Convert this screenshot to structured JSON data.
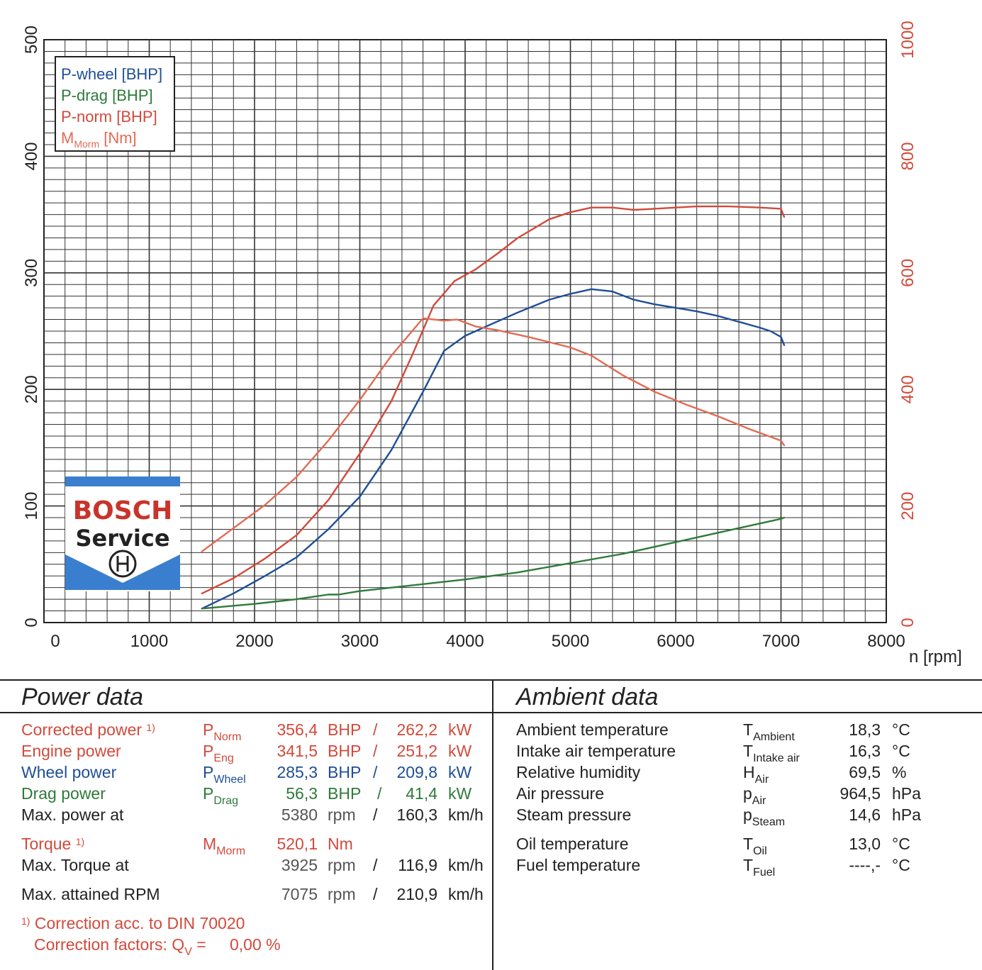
{
  "chart_data": {
    "type": "line",
    "xlabel": "n [rpm]",
    "xlim": [
      0,
      8000
    ],
    "x_ticks": [
      "0",
      "1000",
      "2000",
      "3000",
      "4000",
      "5000",
      "6000",
      "7000",
      "8000"
    ],
    "ylim_left": [
      0,
      500
    ],
    "y_ticks_left": [
      "0",
      "100",
      "200",
      "300",
      "400",
      "500"
    ],
    "ylim_right": [
      0,
      1000
    ],
    "y_ticks_right": [
      "0",
      "200",
      "400",
      "600",
      "800",
      "1000"
    ],
    "grid": true,
    "legend_position": "top-left",
    "series": [
      {
        "name": "P-wheel [BHP]",
        "color": "#1f4f96",
        "axis": "left",
        "x": [
          1500,
          1800,
          2100,
          2400,
          2700,
          3000,
          3300,
          3600,
          3800,
          4000,
          4200,
          4500,
          4800,
          5000,
          5200,
          5400,
          5600,
          5800,
          6000,
          6200,
          6400,
          6600,
          6800,
          6900,
          7000,
          7030
        ],
        "y": [
          12,
          25,
          40,
          56,
          80,
          108,
          148,
          198,
          233,
          246,
          254,
          266,
          277,
          282,
          286,
          284,
          277,
          273,
          270,
          267,
          263,
          258,
          253,
          250,
          245,
          238
        ]
      },
      {
        "name": "P-drag [BHP]",
        "color": "#2f7a3a",
        "axis": "left",
        "x": [
          1500,
          2000,
          2400,
          2700,
          2800,
          3000,
          3500,
          4000,
          4500,
          5000,
          5500,
          6000,
          6500,
          7000,
          7030
        ],
        "y": [
          12,
          16,
          20,
          24,
          24,
          27,
          32,
          37,
          43,
          51,
          59,
          69,
          79,
          89,
          90
        ]
      },
      {
        "name": "P-norm [BHP]",
        "color": "#d24a3c",
        "axis": "left",
        "x": [
          1500,
          1800,
          2100,
          2400,
          2700,
          3000,
          3300,
          3500,
          3700,
          3900,
          4100,
          4300,
          4500,
          4800,
          5000,
          5200,
          5400,
          5600,
          5800,
          6000,
          6200,
          6500,
          6800,
          7000,
          7030
        ],
        "y": [
          25,
          38,
          55,
          75,
          105,
          145,
          190,
          230,
          272,
          293,
          303,
          316,
          330,
          346,
          352,
          356,
          356,
          354,
          355,
          356,
          357,
          357,
          356,
          355,
          348
        ]
      },
      {
        "name": "MMorm [Nm]",
        "color": "#e46a52",
        "axis": "right",
        "x": [
          1500,
          1800,
          2100,
          2400,
          2700,
          3000,
          3300,
          3600,
          3800,
          3925,
          4100,
          4300,
          4600,
          5000,
          5200,
          5500,
          5800,
          6100,
          6400,
          6700,
          7000,
          7030
        ],
        "y": [
          122,
          162,
          202,
          250,
          312,
          382,
          458,
          522,
          518,
          520,
          508,
          502,
          490,
          472,
          458,
          424,
          396,
          374,
          354,
          332,
          312,
          304
        ]
      }
    ]
  },
  "legend": {
    "p_wheel": "P-wheel [BHP]",
    "p_drag": "P-drag [BHP]",
    "p_norm": "P-norm [BHP]",
    "m_main": "M",
    "m_sub": "Morm",
    "m_unit": " [Nm]"
  },
  "logo": {
    "brand": "BOSCH",
    "service": "Service",
    "colors": {
      "blue": "#3a7fcf",
      "red": "#c8342c",
      "dark": "#222222"
    }
  },
  "power": {
    "title": "Power data",
    "corrected": {
      "label": "Corrected power",
      "note": "1)",
      "sym": "P",
      "sub": "Norm",
      "bhp": "356,4",
      "bhp_unit": "BHP",
      "slash": "/",
      "kw": "262,2",
      "kw_unit": "kW"
    },
    "engine": {
      "label": "Engine power",
      "sym": "P",
      "sub": "Eng",
      "bhp": "341,5",
      "bhp_unit": "BHP",
      "slash": "/",
      "kw": "251,2",
      "kw_unit": "kW"
    },
    "wheel": {
      "label": "Wheel power",
      "sym": "P",
      "sub": "Wheel",
      "bhp": "285,3",
      "bhp_unit": "BHP",
      "slash": "/",
      "kw": "209,8",
      "kw_unit": "kW"
    },
    "drag": {
      "label": "Drag power",
      "sym": "P",
      "sub": "Drag",
      "bhp": "56,3",
      "bhp_unit": "BHP",
      "slash": "/",
      "kw": "41,4",
      "kw_unit": "kW"
    },
    "max_power": {
      "label": "Max. power at",
      "rpm": "5380",
      "rpm_unit": "rpm",
      "slash": "/",
      "speed": "160,3",
      "speed_unit": "km/h"
    },
    "torque": {
      "label": "Torque",
      "note": "1)",
      "sym": "M",
      "sub": "Morm",
      "value": "520,1",
      "unit": "Nm"
    },
    "max_torque": {
      "label": "Max. Torque at",
      "rpm": "3925",
      "rpm_unit": "rpm",
      "slash": "/",
      "speed": "116,9",
      "speed_unit": "km/h"
    },
    "max_rpm": {
      "label": "Max. attained RPM",
      "rpm": "7075",
      "rpm_unit": "rpm",
      "slash": "/",
      "speed": "210,9",
      "speed_unit": "km/h"
    },
    "footnote": {
      "note": "1)",
      "line1": "Correction acc. to DIN 70020",
      "line2_label": "Correction factors: Q",
      "line2_sub": "V",
      "line2_eq": " =",
      "line2_value": "0,00 %"
    }
  },
  "ambient": {
    "title": "Ambient data",
    "rows": [
      {
        "label": "Ambient temperature",
        "sym": "T",
        "sub": "Ambient",
        "value": "18,3",
        "unit": "°C"
      },
      {
        "label": "Intake air temperature",
        "sym": "T",
        "sub": "Intake air",
        "value": "16,3",
        "unit": "°C"
      },
      {
        "label": "Relative humidity",
        "sym": "H",
        "sub": "Air",
        "value": "69,5",
        "unit": "%"
      },
      {
        "label": "Air pressure",
        "sym": "p",
        "sub": "Air",
        "value": "964,5",
        "unit": "hPa"
      },
      {
        "label": "Steam pressure",
        "sym": "p",
        "sub": "Steam",
        "value": "14,6",
        "unit": "hPa"
      },
      {
        "label": "Oil temperature",
        "sym": "T",
        "sub": "Oil",
        "value": "13,0",
        "unit": "°C"
      },
      {
        "label": "Fuel temperature",
        "sym": "T",
        "sub": "Fuel",
        "value": "----,-",
        "unit": "°C"
      }
    ]
  }
}
